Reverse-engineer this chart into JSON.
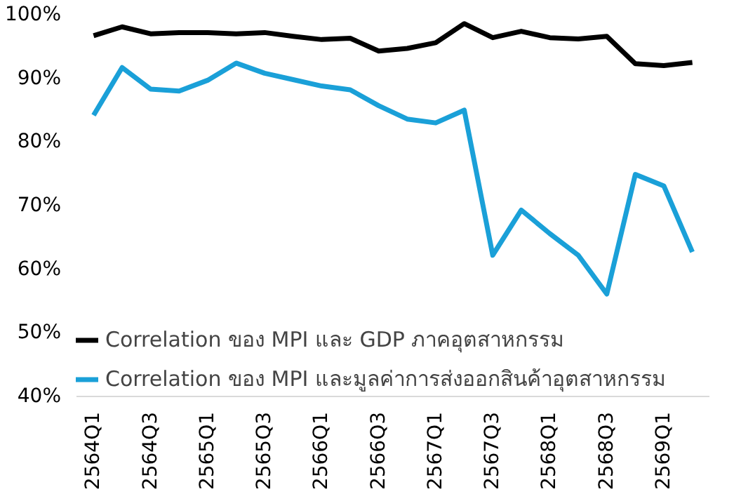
{
  "chart_data": {
    "type": "line",
    "categories": [
      "2564Q1",
      null,
      "2564Q3",
      null,
      "2565Q1",
      null,
      "2565Q3",
      null,
      "2566Q1",
      null,
      "2566Q3",
      null,
      "2567Q1",
      null,
      "2567Q3",
      null,
      "2568Q1",
      null,
      "2568Q3",
      null,
      "2569Q1",
      null
    ],
    "series": [
      {
        "name": "Correlation ของ MPI และ GDP ภาคอุตสาหกรรม",
        "color": "#000000",
        "values": [
          96.7,
          98.1,
          97.0,
          97.2,
          97.2,
          97.0,
          97.2,
          96.6,
          96.1,
          96.3,
          94.3,
          94.7,
          95.6,
          98.6,
          96.4,
          97.4,
          96.4,
          96.2,
          96.6,
          92.3,
          92.0,
          92.5
        ]
      },
      {
        "name": "Correlation ของ MPI และมูลค่าการส่งออกสินค้าอุตสาหกรรม",
        "color": "#1aa0d8",
        "values": [
          84.2,
          91.7,
          88.3,
          88.0,
          89.7,
          92.4,
          90.8,
          89.8,
          88.8,
          88.2,
          85.7,
          83.6,
          83.0,
          85.0,
          62.2,
          69.3,
          65.6,
          62.2,
          56.1,
          74.9,
          73.1,
          62.7
        ]
      }
    ],
    "ylim": [
      40,
      100
    ],
    "yticks": [
      {
        "value": 40,
        "label": "40%"
      },
      {
        "value": 50,
        "label": "50%"
      },
      {
        "value": 60,
        "label": "60%"
      },
      {
        "value": 70,
        "label": "70%"
      },
      {
        "value": 80,
        "label": "80%"
      },
      {
        "value": 90,
        "label": "90%"
      },
      {
        "value": 100,
        "label": "100%"
      }
    ],
    "grid": false,
    "legend": "bottom left",
    "marker": "none",
    "line_style": "solid"
  }
}
